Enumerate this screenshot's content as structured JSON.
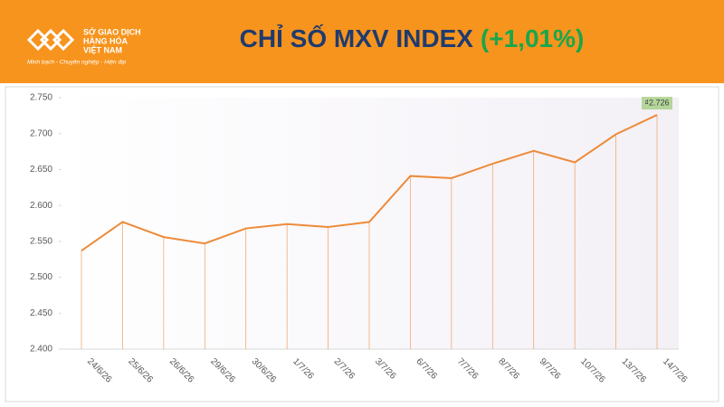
{
  "header": {
    "logo_lines": [
      "SỞ GIAO DỊCH",
      "HÀNG HÓA",
      "VIỆT NAM"
    ],
    "tagline": "Minh bạch - Chuyên nghiệp - Hiện đại",
    "title": "CHỈ SỐ MXV INDEX",
    "change": "(+1,01%)"
  },
  "chart_data": {
    "type": "line",
    "categories": [
      "24/6/26",
      "25/6/26",
      "26/6/26",
      "29/6/26",
      "30/6/26",
      "1/7/26",
      "2/7/26",
      "3/7/26",
      "6/7/26",
      "7/7/26",
      "8/7/26",
      "9/7/26",
      "10/7/26",
      "13/7/26",
      "14/7/26"
    ],
    "values": [
      2537,
      2577,
      2556,
      2547,
      2568,
      2574,
      2570,
      2577,
      2641,
      2638,
      2658,
      2676,
      2660,
      2699,
      2726
    ],
    "value_labels": [
      null,
      null,
      null,
      null,
      null,
      null,
      null,
      null,
      null,
      null,
      null,
      null,
      null,
      null,
      "₫2.726"
    ],
    "color": "#ed8b3a",
    "ylim": [
      2400,
      2750
    ],
    "yticks": [
      {
        "value": 2400,
        "label": "2.400"
      },
      {
        "value": 2450,
        "label": "2.450"
      },
      {
        "value": 2500,
        "label": "2.500"
      },
      {
        "value": 2550,
        "label": "2.550"
      },
      {
        "value": 2600,
        "label": "2.600"
      },
      {
        "value": 2650,
        "label": "2.650"
      },
      {
        "value": 2700,
        "label": "2.700"
      },
      {
        "value": 2750,
        "label": "2.750"
      }
    ],
    "grid": false
  }
}
